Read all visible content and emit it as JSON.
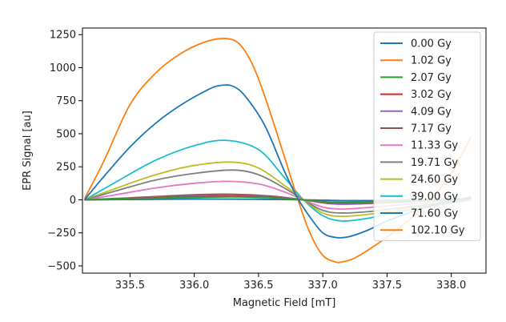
{
  "chart_data": {
    "type": "line",
    "title": "",
    "xlabel": "Magnetic Field [mT]",
    "ylabel": "EPR Signal [au]",
    "xlim": [
      335.13,
      338.27
    ],
    "ylim": [
      -555,
      1300
    ],
    "xticks": [
      335.5,
      336.0,
      336.5,
      337.0,
      337.5,
      338.0
    ],
    "xtick_labels": [
      "335.5",
      "336.0",
      "336.5",
      "337.0",
      "337.5",
      "338.0"
    ],
    "yticks": [
      1250,
      1000,
      750,
      500,
      250,
      0,
      -250,
      -500
    ],
    "ytick_labels": [
      "1250",
      "1000",
      "750",
      "500",
      "250",
      "0",
      "−250",
      "−500"
    ],
    "grid": false,
    "legend_position": "upper-right",
    "series": [
      {
        "name": "0.00 Gy",
        "color": "#1f77b4",
        "x": [
          335.15,
          335.3,
          335.5,
          335.7,
          335.9,
          336.1,
          336.2,
          336.3,
          336.4,
          336.55,
          336.7,
          336.8,
          336.9,
          337.0,
          337.1,
          337.2,
          337.35,
          337.5,
          337.7,
          337.9,
          338.15
        ],
        "y": [
          5,
          180,
          400,
          580,
          720,
          830,
          865,
          860,
          780,
          560,
          220,
          20,
          -130,
          -250,
          -285,
          -280,
          -230,
          -160,
          -90,
          -30,
          20
        ]
      },
      {
        "name": "1.02 Gy",
        "color": "#ff7f0e",
        "x": [
          335.15,
          335.3,
          335.5,
          335.7,
          335.9,
          336.1,
          336.25,
          336.35,
          336.45,
          336.55,
          336.7,
          336.8,
          336.9,
          337.0,
          337.1,
          337.15,
          337.25,
          337.4,
          337.6,
          337.8,
          338.0,
          338.15
        ],
        "y": [
          15,
          300,
          720,
          960,
          1110,
          1200,
          1220,
          1180,
          1030,
          780,
          330,
          20,
          -250,
          -420,
          -470,
          -470,
          -440,
          -350,
          -210,
          -40,
          200,
          470
        ]
      },
      {
        "name": "2.07 Gy",
        "color": "#2ca02c",
        "x": [
          335.15,
          335.5,
          336.0,
          336.3,
          336.6,
          336.85,
          337.1,
          337.5,
          338.15
        ],
        "y": [
          0,
          8,
          18,
          22,
          15,
          0,
          -18,
          -12,
          5
        ]
      },
      {
        "name": "3.02 Gy",
        "color": "#d62728",
        "x": [
          335.15,
          335.5,
          336.0,
          336.3,
          336.6,
          336.85,
          337.1,
          337.5,
          338.15
        ],
        "y": [
          0,
          10,
          22,
          26,
          18,
          0,
          -22,
          -14,
          6
        ]
      },
      {
        "name": "4.09 Gy",
        "color": "#9467bd",
        "x": [
          335.15,
          335.5,
          336.0,
          336.3,
          336.6,
          336.85,
          337.1,
          337.5,
          338.15
        ],
        "y": [
          0,
          12,
          28,
          32,
          22,
          0,
          -28,
          -18,
          8
        ]
      },
      {
        "name": "7.17 Gy",
        "color": "#8c564b",
        "x": [
          335.15,
          335.5,
          336.0,
          336.3,
          336.6,
          336.85,
          337.1,
          337.5,
          338.15
        ],
        "y": [
          0,
          15,
          38,
          42,
          28,
          0,
          -32,
          -22,
          10
        ]
      },
      {
        "name": "11.33 Gy",
        "color": "#e377c2",
        "x": [
          335.15,
          335.4,
          335.7,
          336.0,
          336.25,
          336.5,
          336.7,
          336.85,
          337.0,
          337.15,
          337.4,
          337.7,
          338.15
        ],
        "y": [
          0,
          40,
          90,
          125,
          140,
          120,
          60,
          0,
          -55,
          -70,
          -55,
          -30,
          0
        ]
      },
      {
        "name": "19.71 Gy",
        "color": "#7f7f7f",
        "x": [
          335.15,
          335.4,
          335.7,
          336.0,
          336.3,
          336.5,
          336.7,
          336.85,
          337.0,
          337.15,
          337.4,
          337.7,
          338.15
        ],
        "y": [
          0,
          70,
          150,
          200,
          225,
          190,
          90,
          0,
          -80,
          -100,
          -85,
          -50,
          0
        ]
      },
      {
        "name": "24.60 Gy",
        "color": "#bcbd22",
        "x": [
          335.15,
          335.4,
          335.7,
          336.0,
          336.3,
          336.5,
          336.7,
          336.85,
          337.0,
          337.15,
          337.4,
          337.7,
          338.15
        ],
        "y": [
          0,
          90,
          190,
          260,
          285,
          240,
          110,
          0,
          -100,
          -125,
          -105,
          -60,
          0
        ]
      },
      {
        "name": "39.00 Gy",
        "color": "#17becf",
        "x": [
          335.15,
          335.4,
          335.7,
          336.0,
          336.25,
          336.5,
          336.7,
          336.85,
          337.0,
          337.15,
          337.35,
          337.6,
          338.15
        ],
        "y": [
          0,
          140,
          300,
          410,
          450,
          380,
          170,
          0,
          -120,
          -160,
          -140,
          -90,
          0
        ]
      },
      {
        "name": "71.60 Gy",
        "color": "#1f77b4",
        "x": [
          335.15,
          335.5,
          336.0,
          336.5,
          336.85,
          337.2,
          337.6,
          338.15
        ],
        "y": [
          0,
          2,
          5,
          4,
          0,
          -6,
          -4,
          0
        ]
      },
      {
        "name": "102.10 Gy",
        "color": "#ff7f0e",
        "x": [
          335.15,
          335.5,
          336.0,
          336.5,
          336.85,
          337.2,
          337.6,
          338.15
        ],
        "y": [
          0,
          3,
          6,
          5,
          0,
          -7,
          -5,
          0
        ]
      }
    ]
  }
}
